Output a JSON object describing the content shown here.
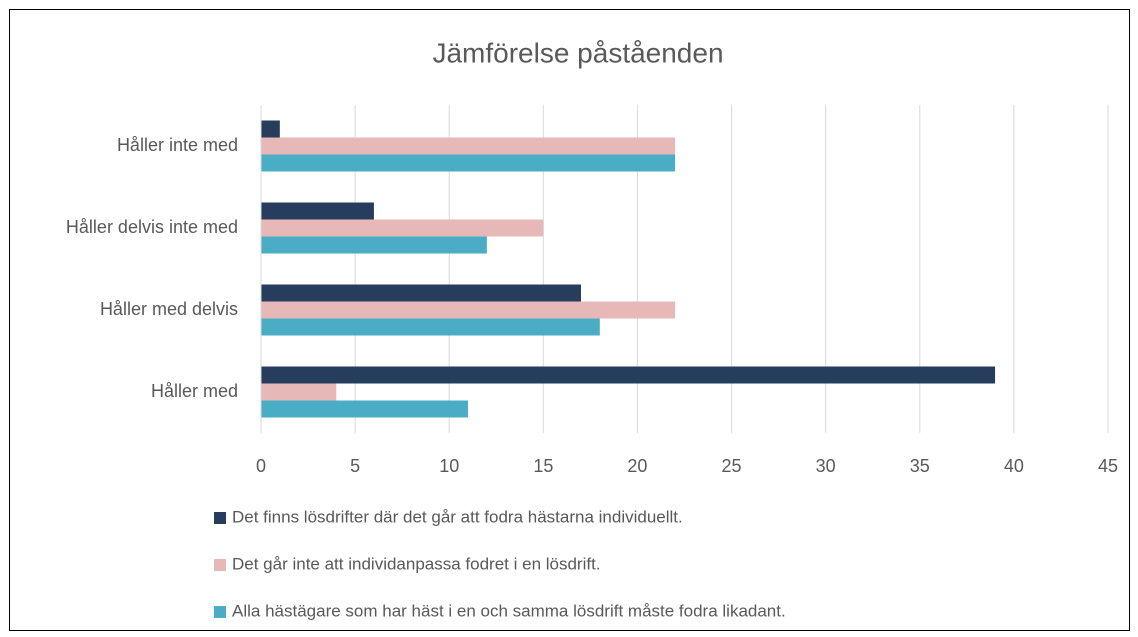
{
  "chart_data": {
    "type": "bar",
    "orientation": "horizontal",
    "title": "Jämförelse påståenden",
    "categories": [
      "Håller inte med",
      "Håller delvis inte med",
      "Håller med delvis",
      "Håller med"
    ],
    "series": [
      {
        "name": "Det finns lösdrifter där det går att fodra hästarna individuellt.",
        "color": "#263d5e",
        "values": [
          1,
          6,
          17,
          39
        ]
      },
      {
        "name": "Det går inte att individanpassa fodret i en lösdrift.",
        "color": "#e6b9b8",
        "values": [
          22,
          15,
          22,
          4
        ]
      },
      {
        "name": "Alla hästägare som har häst i en och samma lösdrift måste fodra likadant.",
        "color": "#4bacc6",
        "values": [
          22,
          12,
          18,
          11
        ]
      }
    ],
    "xlim": [
      0,
      45
    ],
    "xticks": [
      0,
      5,
      10,
      15,
      20,
      25,
      30,
      35,
      40,
      45
    ],
    "grid": true,
    "legend": "bottom"
  }
}
